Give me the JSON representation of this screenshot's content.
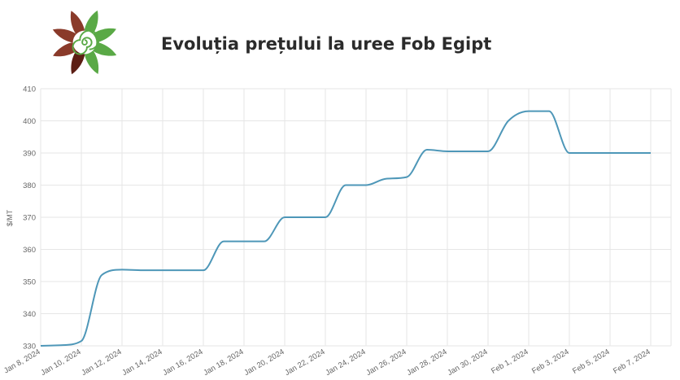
{
  "header": {
    "title": "Evoluția prețului la uree Fob Egipt",
    "logo_icon": "flower-spiral-logo-icon",
    "logo_colors": {
      "green": "#5aa946",
      "brown": "#8a3a2a",
      "dark_brown": "#5c1e14"
    }
  },
  "chart_data": {
    "type": "line",
    "title": "Evoluția prețului la uree Fob Egipt",
    "ylabel": "$/MT",
    "xlabel": "",
    "ylim": [
      330,
      410
    ],
    "yticks": [
      330,
      340,
      350,
      360,
      370,
      380,
      390,
      400,
      410
    ],
    "xlim": [
      "2024-01-08",
      "2024-02-08"
    ],
    "xtick_labels": [
      "Jan 8, 2024",
      "Jan 10, 2024",
      "Jan 12, 2024",
      "Jan 14, 2024",
      "Jan 16, 2024",
      "Jan 18, 2024",
      "Jan 20, 2024",
      "Jan 22, 2024",
      "Jan 24, 2024",
      "Jan 26, 2024",
      "Jan 28, 2024",
      "Jan 30, 2024",
      "Feb 1, 2024",
      "Feb 3, 2024",
      "Feb 5, 2024",
      "Feb 7, 2024"
    ],
    "xtick_dates": [
      "2024-01-08",
      "2024-01-10",
      "2024-01-12",
      "2024-01-14",
      "2024-01-16",
      "2024-01-18",
      "2024-01-20",
      "2024-01-22",
      "2024-01-24",
      "2024-01-26",
      "2024-01-28",
      "2024-01-30",
      "2024-02-01",
      "2024-02-03",
      "2024-02-05",
      "2024-02-07"
    ],
    "grid": true,
    "line_color": "#4e97b8",
    "series": [
      {
        "x": [
          "2024-01-08",
          "2024-01-09",
          "2024-01-10",
          "2024-01-11",
          "2024-01-12",
          "2024-01-13",
          "2024-01-14",
          "2024-01-15",
          "2024-01-16",
          "2024-01-17",
          "2024-01-18",
          "2024-01-19",
          "2024-01-20",
          "2024-01-21",
          "2024-01-22",
          "2024-01-23",
          "2024-01-24",
          "2024-01-25",
          "2024-01-26",
          "2024-01-27",
          "2024-01-28",
          "2024-01-29",
          "2024-01-30",
          "2024-01-31",
          "2024-02-01",
          "2024-02-02",
          "2024-02-03",
          "2024-02-04",
          "2024-02-05",
          "2024-02-06",
          "2024-02-07"
        ],
        "values": [
          330,
          330.2,
          331.5,
          352,
          353.7,
          353.5,
          353.5,
          353.5,
          353.5,
          362.5,
          362.5,
          362.5,
          370,
          370,
          370,
          380,
          380,
          382,
          382.5,
          391,
          390.5,
          390.5,
          390.5,
          400,
          403,
          403,
          390,
          390,
          390,
          390,
          390
        ]
      }
    ]
  }
}
